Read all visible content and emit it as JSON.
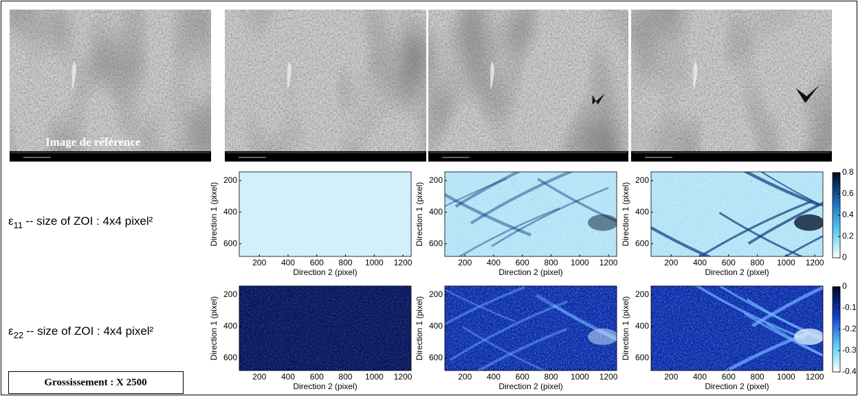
{
  "reference_label": "Image de référence",
  "rows": [
    {
      "symbol": "ε",
      "subscript": "11",
      "text": "-- size of ZOI : 4x4 pixel²"
    },
    {
      "symbol": "ε",
      "subscript": "22",
      "text": "-- size of ZOI : 4x4 pixel²"
    }
  ],
  "maps": {
    "ylabel": "Direction 1 (pixel)",
    "xlabel": "Direction 2 (pixel)",
    "xlim": [
      60,
      1257
    ],
    "ylim": [
      145,
      680
    ],
    "xticks": [
      200,
      400,
      600,
      800,
      1000,
      1200
    ],
    "yticks": [
      200,
      400,
      600
    ]
  },
  "colorbars": [
    {
      "lim": [
        0,
        0.8
      ],
      "ticks": [
        0,
        0.2,
        0.4,
        0.6,
        0.8
      ]
    },
    {
      "lim": [
        -0.4,
        0
      ],
      "ticks": [
        -0.4,
        -0.3,
        -0.2,
        -0.1,
        0
      ]
    }
  ],
  "magnification": "Grossissement : X 2500"
}
